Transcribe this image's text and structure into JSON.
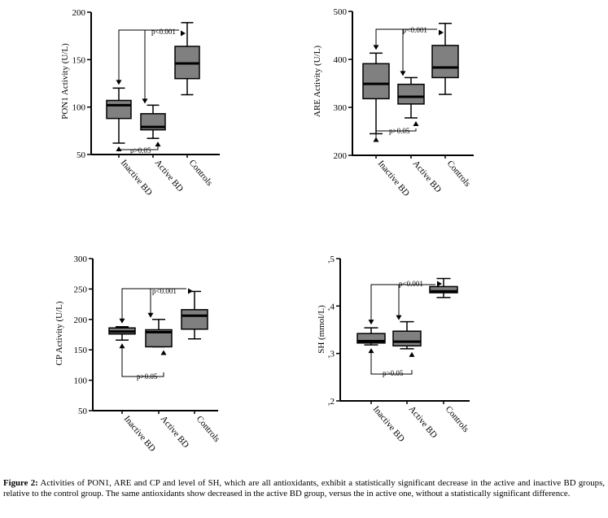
{
  "figure": {
    "caption_lead": "Figure 2:",
    "caption_text": " Activities of PON1, ARE and CP and level of SH, which are all antioxidants, exhibit a statistically significant decrease in the active and inactive BD groups, relative to the control group. The same antioxidants show decreased in the active BD group, versus the in active one, without a statistically significant difference."
  },
  "colors": {
    "box_fill": "#808080",
    "stroke": "#000000",
    "background": "#ffffff"
  },
  "chart_data": [
    {
      "type": "box",
      "ylabel": "PON1  Activity (U/L)",
      "ylim": [
        50,
        200
      ],
      "yticks": [
        50,
        100,
        150,
        200
      ],
      "ytick_labels": [
        "50",
        "100",
        "150",
        "200"
      ],
      "categories": [
        "Inactive BD",
        "Active BD",
        "Controls"
      ],
      "boxes": [
        {
          "min": 62,
          "q1": 88,
          "median": 102,
          "q3": 107,
          "max": 120
        },
        {
          "min": 67,
          "q1": 76,
          "median": 79,
          "q3": 93,
          "max": 102
        },
        {
          "min": 113,
          "q1": 130,
          "median": 146,
          "q3": 164,
          "max": 189
        }
      ],
      "annotations": [
        {
          "text": "p<0.001",
          "comparison": "Inactive BD vs Controls"
        },
        {
          "text": "p>0.05",
          "comparison": "Inactive BD vs Active BD"
        }
      ]
    },
    {
      "type": "box",
      "ylabel": "ARE Activity (U/L)",
      "ylim": [
        200,
        500
      ],
      "yticks": [
        200,
        300,
        400,
        500
      ],
      "ytick_labels": [
        "200",
        "300",
        "400",
        "500"
      ],
      "categories": [
        "Inactive BD",
        "Active BD",
        "Controls"
      ],
      "boxes": [
        {
          "min": 245,
          "q1": 318,
          "median": 349,
          "q3": 391,
          "max": 413
        },
        {
          "min": 278,
          "q1": 307,
          "median": 322,
          "q3": 348,
          "max": 362
        },
        {
          "min": 327,
          "q1": 362,
          "median": 383,
          "q3": 429,
          "max": 475
        }
      ],
      "annotations": [
        {
          "text": "p<0.001",
          "comparison": "Inactive BD vs Controls"
        },
        {
          "text": "p>0.05",
          "comparison": "Inactive BD vs Active BD"
        }
      ]
    },
    {
      "type": "box",
      "ylabel": "CP Activity (U/L)",
      "ylim": [
        50,
        300
      ],
      "yticks": [
        50,
        100,
        150,
        200,
        250,
        300
      ],
      "ytick_labels": [
        "50",
        "100",
        "150",
        "200",
        "250",
        "300"
      ],
      "categories": [
        "Inactive BD",
        "Active BD",
        "Controls"
      ],
      "boxes": [
        {
          "min": 166,
          "q1": 176,
          "median": 180,
          "q3": 186,
          "max": 188
        },
        {
          "min": 155,
          "q1": 155,
          "median": 179,
          "q3": 183,
          "max": 200
        },
        {
          "min": 168,
          "q1": 184,
          "median": 206,
          "q3": 216,
          "max": 246
        }
      ],
      "annotations": [
        {
          "text": "p<0.001",
          "comparison": "Inactive BD vs Controls"
        },
        {
          "text": "p>0.05",
          "comparison": "Inactive BD vs Active BD"
        }
      ]
    },
    {
      "type": "box",
      "ylabel": "SH (mmol/L)",
      "ylim": [
        0.2,
        0.5
      ],
      "yticks": [
        0.2,
        0.3,
        0.4,
        0.5
      ],
      "ytick_labels": [
        ",2",
        ",3",
        ",4",
        ",5"
      ],
      "categories": [
        "Inactive BD",
        "Active BD",
        "Controls"
      ],
      "boxes": [
        {
          "min": 0.318,
          "q1": 0.322,
          "median": 0.326,
          "q3": 0.342,
          "max": 0.354
        },
        {
          "min": 0.31,
          "q1": 0.316,
          "median": 0.325,
          "q3": 0.347,
          "max": 0.367
        },
        {
          "min": 0.418,
          "q1": 0.428,
          "median": 0.431,
          "q3": 0.441,
          "max": 0.458
        }
      ],
      "annotations": [
        {
          "text": "p<0.001",
          "comparison": "Inactive BD vs Controls"
        },
        {
          "text": "p>0.05",
          "comparison": "Inactive BD vs Active BD"
        }
      ]
    }
  ]
}
